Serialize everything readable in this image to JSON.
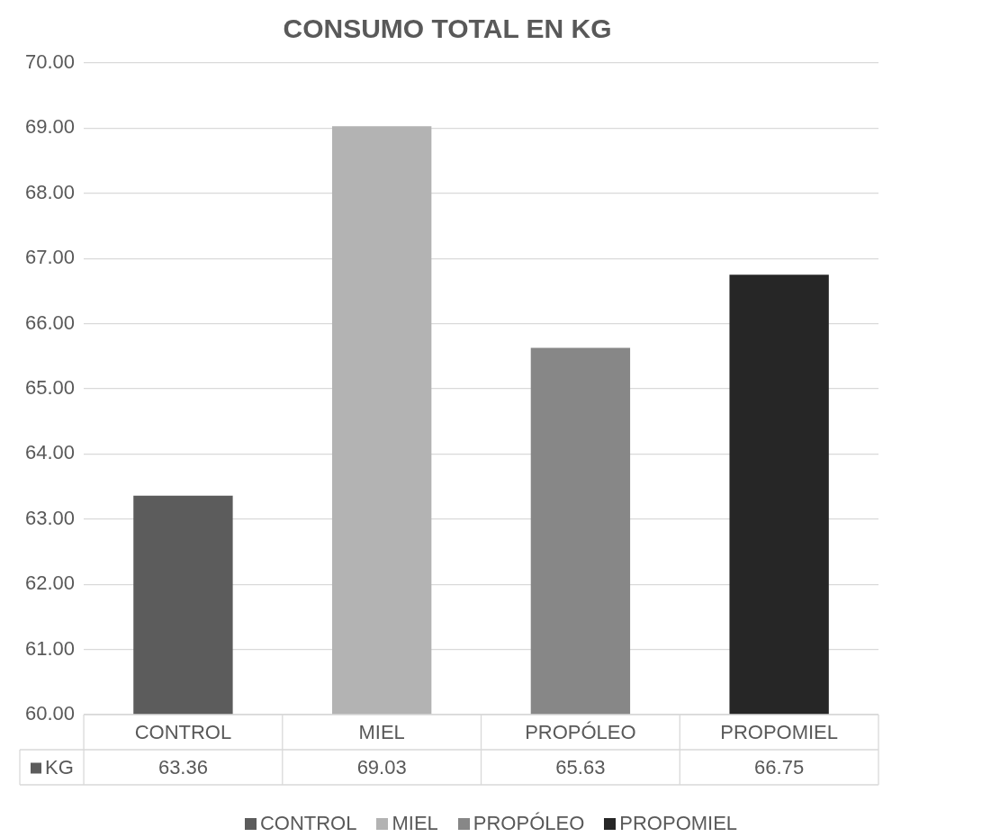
{
  "chart_data": {
    "type": "bar",
    "title": "CONSUMO TOTAL EN KG",
    "categories": [
      "CONTROL",
      "MIEL",
      "PROPÓLEO",
      "PROPOMIEL"
    ],
    "series": [
      {
        "name": "KG",
        "colors": [
          "#5c5c5c",
          "#b3b3b3",
          "#878787",
          "#262626"
        ],
        "values": [
          63.36,
          69.03,
          65.63,
          66.75
        ]
      }
    ],
    "ylim": [
      60,
      70
    ],
    "yticks": [
      {
        "value": 60,
        "label": "60.00"
      },
      {
        "value": 61,
        "label": "61.00"
      },
      {
        "value": 62,
        "label": "62.00"
      },
      {
        "value": 63,
        "label": "63.00"
      },
      {
        "value": 64,
        "label": "64.00"
      },
      {
        "value": 65,
        "label": "65.00"
      },
      {
        "value": 66,
        "label": "66.00"
      },
      {
        "value": 67,
        "label": "67.00"
      },
      {
        "value": 68,
        "label": "68.00"
      },
      {
        "value": 69,
        "label": "69.00"
      },
      {
        "value": 70,
        "label": "70.00"
      }
    ],
    "grid": "y",
    "legend": "bottom",
    "data_labels": true
  }
}
